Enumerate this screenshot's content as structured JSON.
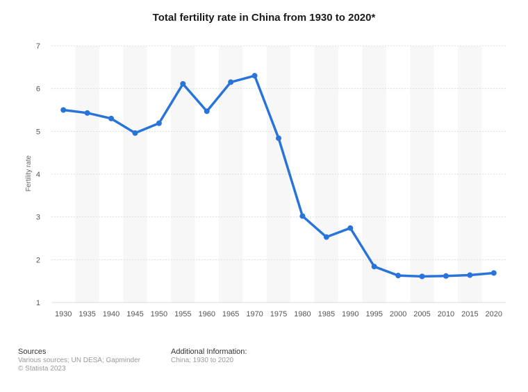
{
  "chart_data": {
    "type": "line",
    "title": "Total fertility rate in China from 1930 to 2020*",
    "xlabel": "",
    "ylabel": "Fertility rate",
    "ylim": [
      1,
      7
    ],
    "yticks": [
      1,
      2,
      3,
      4,
      5,
      6,
      7
    ],
    "categories": [
      "1930",
      "1935",
      "1940",
      "1945",
      "1950",
      "1955",
      "1960",
      "1965",
      "1970",
      "1975",
      "1980",
      "1985",
      "1990",
      "1995",
      "2000",
      "2005",
      "2010",
      "2015",
      "2020"
    ],
    "series": [
      {
        "values": [
          5.5,
          5.43,
          5.3,
          4.96,
          5.19,
          6.11,
          5.47,
          6.15,
          6.3,
          4.84,
          3.02,
          2.53,
          2.74,
          1.84,
          1.63,
          1.61,
          1.62,
          1.64,
          1.69
        ]
      }
    ],
    "grid": true,
    "line_color": "#2874d9",
    "band_color": "#f7f7f7"
  },
  "footer": {
    "sources_title": "Sources",
    "sources_text": "Various sources; UN DESA; Gapminder",
    "copyright": "© Statista 2023",
    "info_title": "Additional Information:",
    "info_text": "China; 1930 to 2020"
  }
}
